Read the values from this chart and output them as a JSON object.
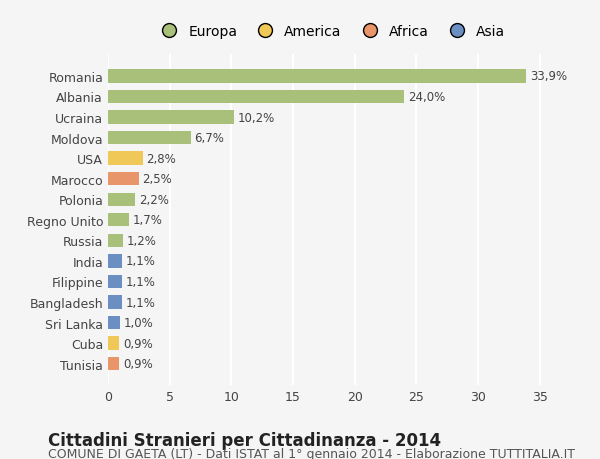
{
  "countries": [
    "Romania",
    "Albania",
    "Ucraina",
    "Moldova",
    "USA",
    "Marocco",
    "Polonia",
    "Regno Unito",
    "Russia",
    "India",
    "Filippine",
    "Bangladesh",
    "Sri Lanka",
    "Cuba",
    "Tunisia"
  ],
  "values": [
    33.9,
    24.0,
    10.2,
    6.7,
    2.8,
    2.5,
    2.2,
    1.7,
    1.2,
    1.1,
    1.1,
    1.1,
    1.0,
    0.9,
    0.9
  ],
  "labels": [
    "33,9%",
    "24,0%",
    "10,2%",
    "6,7%",
    "2,8%",
    "2,5%",
    "2,2%",
    "1,7%",
    "1,2%",
    "1,1%",
    "1,1%",
    "1,1%",
    "1,0%",
    "0,9%",
    "0,9%"
  ],
  "categories": [
    "Europa",
    "Europa",
    "Europa",
    "Europa",
    "America",
    "Africa",
    "Europa",
    "Europa",
    "Europa",
    "Asia",
    "Asia",
    "Asia",
    "Asia",
    "America",
    "Africa"
  ],
  "colors": {
    "Europa": "#a8c07a",
    "America": "#f0c857",
    "Africa": "#e8956a",
    "Asia": "#6b8fc2"
  },
  "legend_order": [
    "Europa",
    "America",
    "Africa",
    "Asia"
  ],
  "legend_colors": [
    "#a8c07a",
    "#f0c857",
    "#e8956a",
    "#6b8fc2"
  ],
  "xlim": [
    0,
    36
  ],
  "xticks": [
    0,
    5,
    10,
    15,
    20,
    25,
    30,
    35
  ],
  "title": "Cittadini Stranieri per Cittadinanza - 2014",
  "subtitle": "COMUNE DI GAETA (LT) - Dati ISTAT al 1° gennaio 2014 - Elaborazione TUTTITALIA.IT",
  "bg_color": "#f5f5f5",
  "grid_color": "#ffffff",
  "bar_height": 0.65,
  "title_fontsize": 12,
  "subtitle_fontsize": 9,
  "label_fontsize": 8.5,
  "tick_fontsize": 9
}
